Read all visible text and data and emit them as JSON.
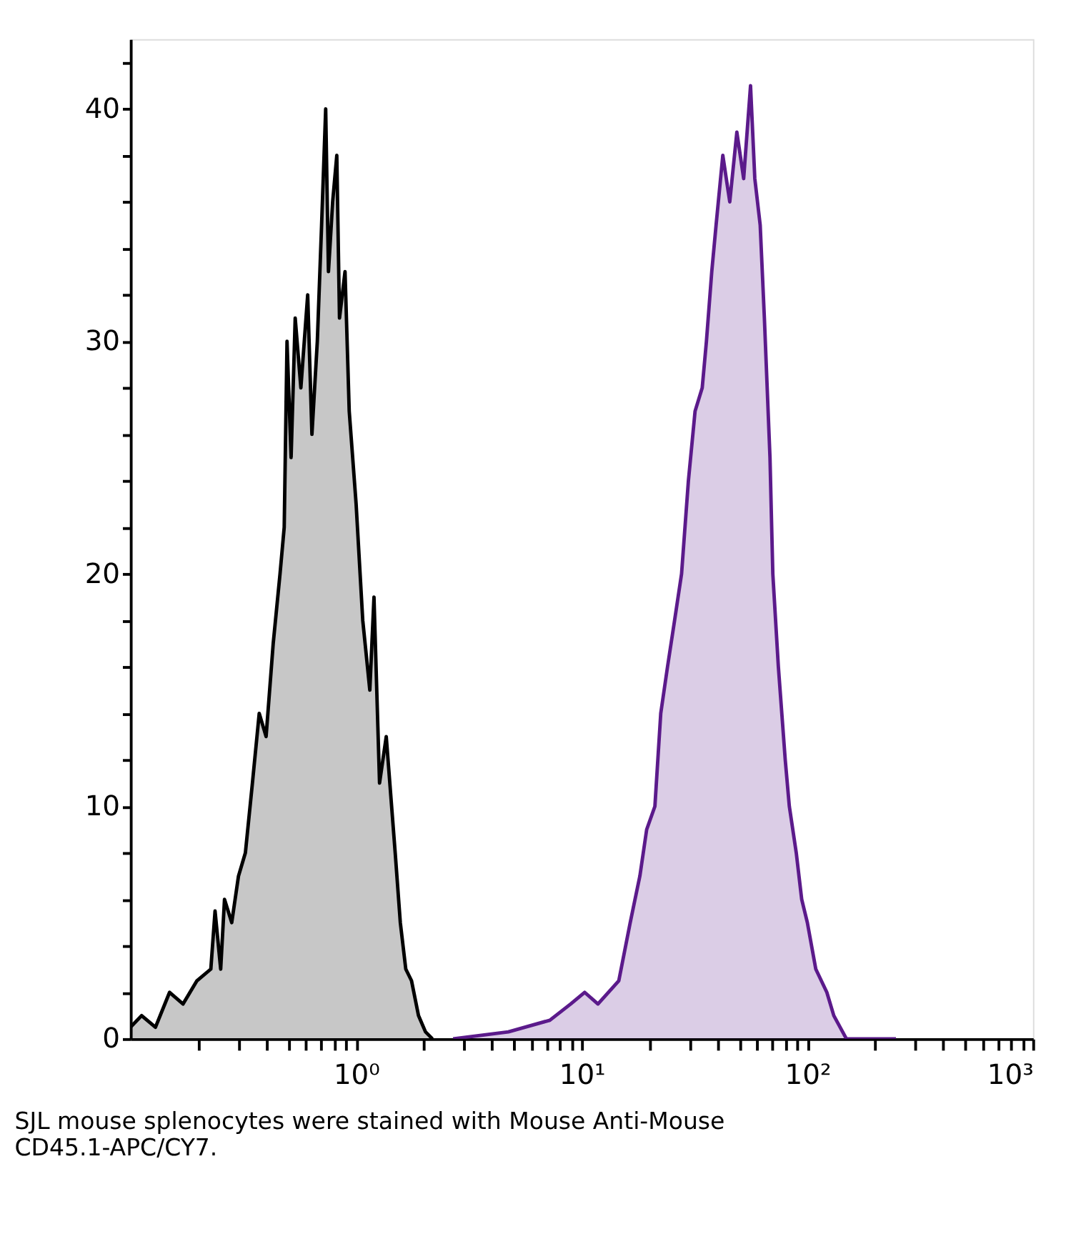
{
  "chart_data": {
    "type": "area",
    "log": "x",
    "xlim": [
      0.1,
      1000
    ],
    "xticks": [
      {
        "value": 0.2,
        "label": null
      },
      {
        "value": 0.3,
        "label": null
      },
      {
        "value": 0.4,
        "label": null
      },
      {
        "value": 0.5,
        "label": null
      },
      {
        "value": 0.6,
        "label": null
      },
      {
        "value": 0.7,
        "label": null
      },
      {
        "value": 0.8,
        "label": null
      },
      {
        "value": 0.9,
        "label": null
      },
      {
        "value": 1,
        "label": "10⁰"
      },
      {
        "value": 2,
        "label": null
      },
      {
        "value": 3,
        "label": null
      },
      {
        "value": 4,
        "label": null
      },
      {
        "value": 5,
        "label": null
      },
      {
        "value": 6,
        "label": null
      },
      {
        "value": 7,
        "label": null
      },
      {
        "value": 8,
        "label": null
      },
      {
        "value": 9,
        "label": null
      },
      {
        "value": 10,
        "label": "10¹"
      },
      {
        "value": 20,
        "label": null
      },
      {
        "value": 30,
        "label": null
      },
      {
        "value": 40,
        "label": null
      },
      {
        "value": 50,
        "label": null
      },
      {
        "value": 60,
        "label": null
      },
      {
        "value": 70,
        "label": null
      },
      {
        "value": 80,
        "label": null
      },
      {
        "value": 90,
        "label": null
      },
      {
        "value": 100,
        "label": "10²"
      },
      {
        "value": 200,
        "label": null
      },
      {
        "value": 300,
        "label": null
      },
      {
        "value": 400,
        "label": null
      },
      {
        "value": 500,
        "label": null
      },
      {
        "value": 600,
        "label": null
      },
      {
        "value": 700,
        "label": null
      },
      {
        "value": 800,
        "label": null
      },
      {
        "value": 900,
        "label": null
      },
      {
        "value": 1000,
        "label": "10³"
      }
    ],
    "ylim": [
      0,
      43
    ],
    "yticks": [
      0,
      {
        "value": 2,
        "label": null
      },
      {
        "value": 4,
        "label": null
      },
      {
        "value": 6,
        "label": null
      },
      {
        "value": 8,
        "label": null
      },
      10,
      {
        "value": 12,
        "label": null
      },
      {
        "value": 14,
        "label": null
      },
      {
        "value": 16,
        "label": null
      },
      {
        "value": 18,
        "label": null
      },
      20,
      {
        "value": 22,
        "label": null
      },
      {
        "value": 24,
        "label": null
      },
      {
        "value": 26,
        "label": null
      },
      {
        "value": 28,
        "label": null
      },
      30,
      {
        "value": 32,
        "label": null
      },
      {
        "value": 34,
        "label": null
      },
      {
        "value": 36,
        "label": null
      },
      {
        "value": 38,
        "label": null
      },
      40,
      {
        "value": 42,
        "label": null
      }
    ],
    "annotations": [
      "SJL mouse splenocytes were stained with Mouse Anti-Mouse CD45.1-APC/CY7."
    ],
    "series": [
      {
        "color": "#000000",
        "x": [
          0.1,
          0.112,
          0.129,
          0.149,
          0.171,
          0.197,
          0.227,
          0.237,
          0.251,
          0.261,
          0.281,
          0.301,
          0.323,
          0.347,
          0.372,
          0.399,
          0.429,
          0.46,
          0.48,
          0.494,
          0.515,
          0.537,
          0.569,
          0.61,
          0.637,
          0.673,
          0.703,
          0.733,
          0.754,
          0.787,
          0.821,
          0.844,
          0.893,
          0.932,
          1,
          1.07,
          1.15,
          1.2,
          1.27,
          1.36,
          1.49,
          1.57,
          1.66,
          1.76,
          1.89,
          2.03,
          2.18
        ],
        "values": [
          0.5,
          1,
          0.5,
          2,
          1.5,
          2.5,
          3,
          5.5,
          3,
          6,
          5,
          7,
          8,
          11,
          14,
          13,
          17,
          20,
          22,
          30,
          25,
          31,
          28,
          32,
          26,
          30,
          35,
          40,
          33,
          36,
          38,
          31,
          33,
          27,
          23,
          18,
          15,
          19,
          11,
          13,
          8,
          5,
          3,
          2.5,
          1,
          0.3,
          0
        ]
      },
      {
        "color": "#5b1a8b",
        "x": [
          2.69,
          4.73,
          7.22,
          8.93,
          10.3,
          11.8,
          14.6,
          16.4,
          18.1,
          19.4,
          21.1,
          22.4,
          24,
          25.8,
          27.7,
          29.7,
          31.8,
          34.2,
          35.7,
          37.7,
          39.4,
          42.2,
          45.3,
          48.7,
          52.2,
          56,
          58.5,
          61.8,
          64.5,
          68.3,
          70.3,
          74.4,
          79.8,
          83.2,
          89.3,
          94.4,
          100,
          109,
          122,
          131,
          149,
          247
        ],
        "values": [
          0,
          0.3,
          0.8,
          1.5,
          2,
          1.5,
          2.5,
          5,
          7,
          9,
          10,
          14,
          16,
          18,
          20,
          24,
          27,
          28,
          30,
          33,
          35,
          38,
          36,
          39,
          37,
          41,
          37,
          35,
          31,
          25,
          20,
          16,
          12,
          10,
          8,
          6,
          5,
          3,
          2,
          1,
          0,
          0
        ]
      }
    ]
  }
}
